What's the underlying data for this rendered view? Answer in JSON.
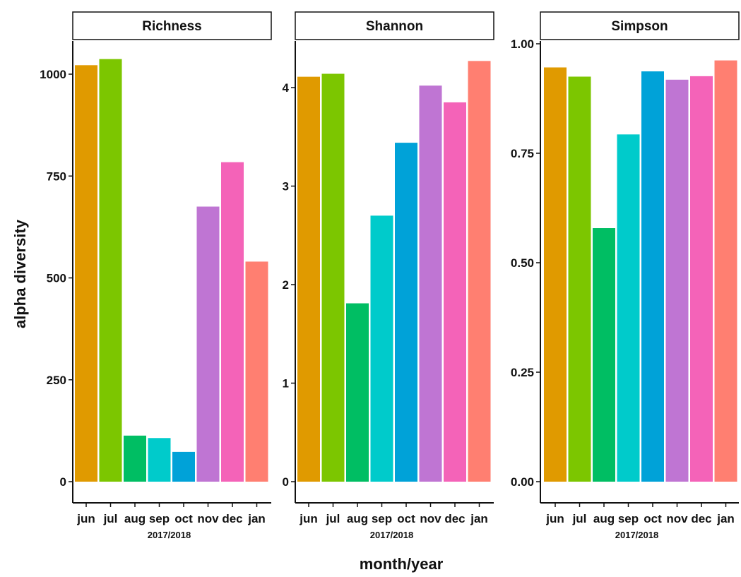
{
  "figure": {
    "y_axis_title": "alpha diversity",
    "x_axis_title": "month/year"
  },
  "colors": {
    "jun": "#E09A00",
    "jul": "#7CC600",
    "aug": "#00BE63",
    "sep": "#00CBCB",
    "oct": "#00A2D8",
    "nov": "#BF75D3",
    "dec": "#F463B8",
    "jan": "#FF7F71"
  },
  "chart_data": [
    {
      "type": "bar",
      "title": "Richness",
      "categories": [
        "jun",
        "jul",
        "aug",
        "sep",
        "oct",
        "nov",
        "dec",
        "jan"
      ],
      "values": [
        1022,
        1037,
        113,
        107,
        73,
        675,
        784,
        540
      ],
      "ylim": [
        0,
        1100
      ],
      "yticks": [
        0,
        250,
        500,
        750,
        1000
      ],
      "ytick_labels": [
        "0",
        "250",
        "500",
        "750",
        "1000"
      ],
      "sublabel": "2017/2018"
    },
    {
      "type": "bar",
      "title": "Shannon",
      "categories": [
        "jun",
        "jul",
        "aug",
        "sep",
        "oct",
        "nov",
        "dec",
        "jan"
      ],
      "values": [
        4.11,
        4.14,
        1.81,
        2.7,
        3.44,
        4.02,
        3.85,
        4.27
      ],
      "ylim": [
        0,
        4.5
      ],
      "yticks": [
        0,
        1,
        2,
        3,
        4
      ],
      "ytick_labels": [
        "0",
        "1",
        "2",
        "3",
        "4"
      ],
      "sublabel": "2017/2018"
    },
    {
      "type": "bar",
      "title": "Simpson",
      "categories": [
        "jun",
        "jul",
        "aug",
        "sep",
        "oct",
        "nov",
        "dec",
        "jan"
      ],
      "values": [
        0.946,
        0.925,
        0.579,
        0.793,
        0.937,
        0.918,
        0.926,
        0.962
      ],
      "ylim": [
        0,
        1.0
      ],
      "yticks": [
        0,
        0.25,
        0.5,
        0.75,
        1.0
      ],
      "ytick_labels": [
        "0.00",
        "0.25",
        "0.50",
        "0.75",
        "1.00"
      ],
      "sublabel": "2017/2018"
    }
  ]
}
